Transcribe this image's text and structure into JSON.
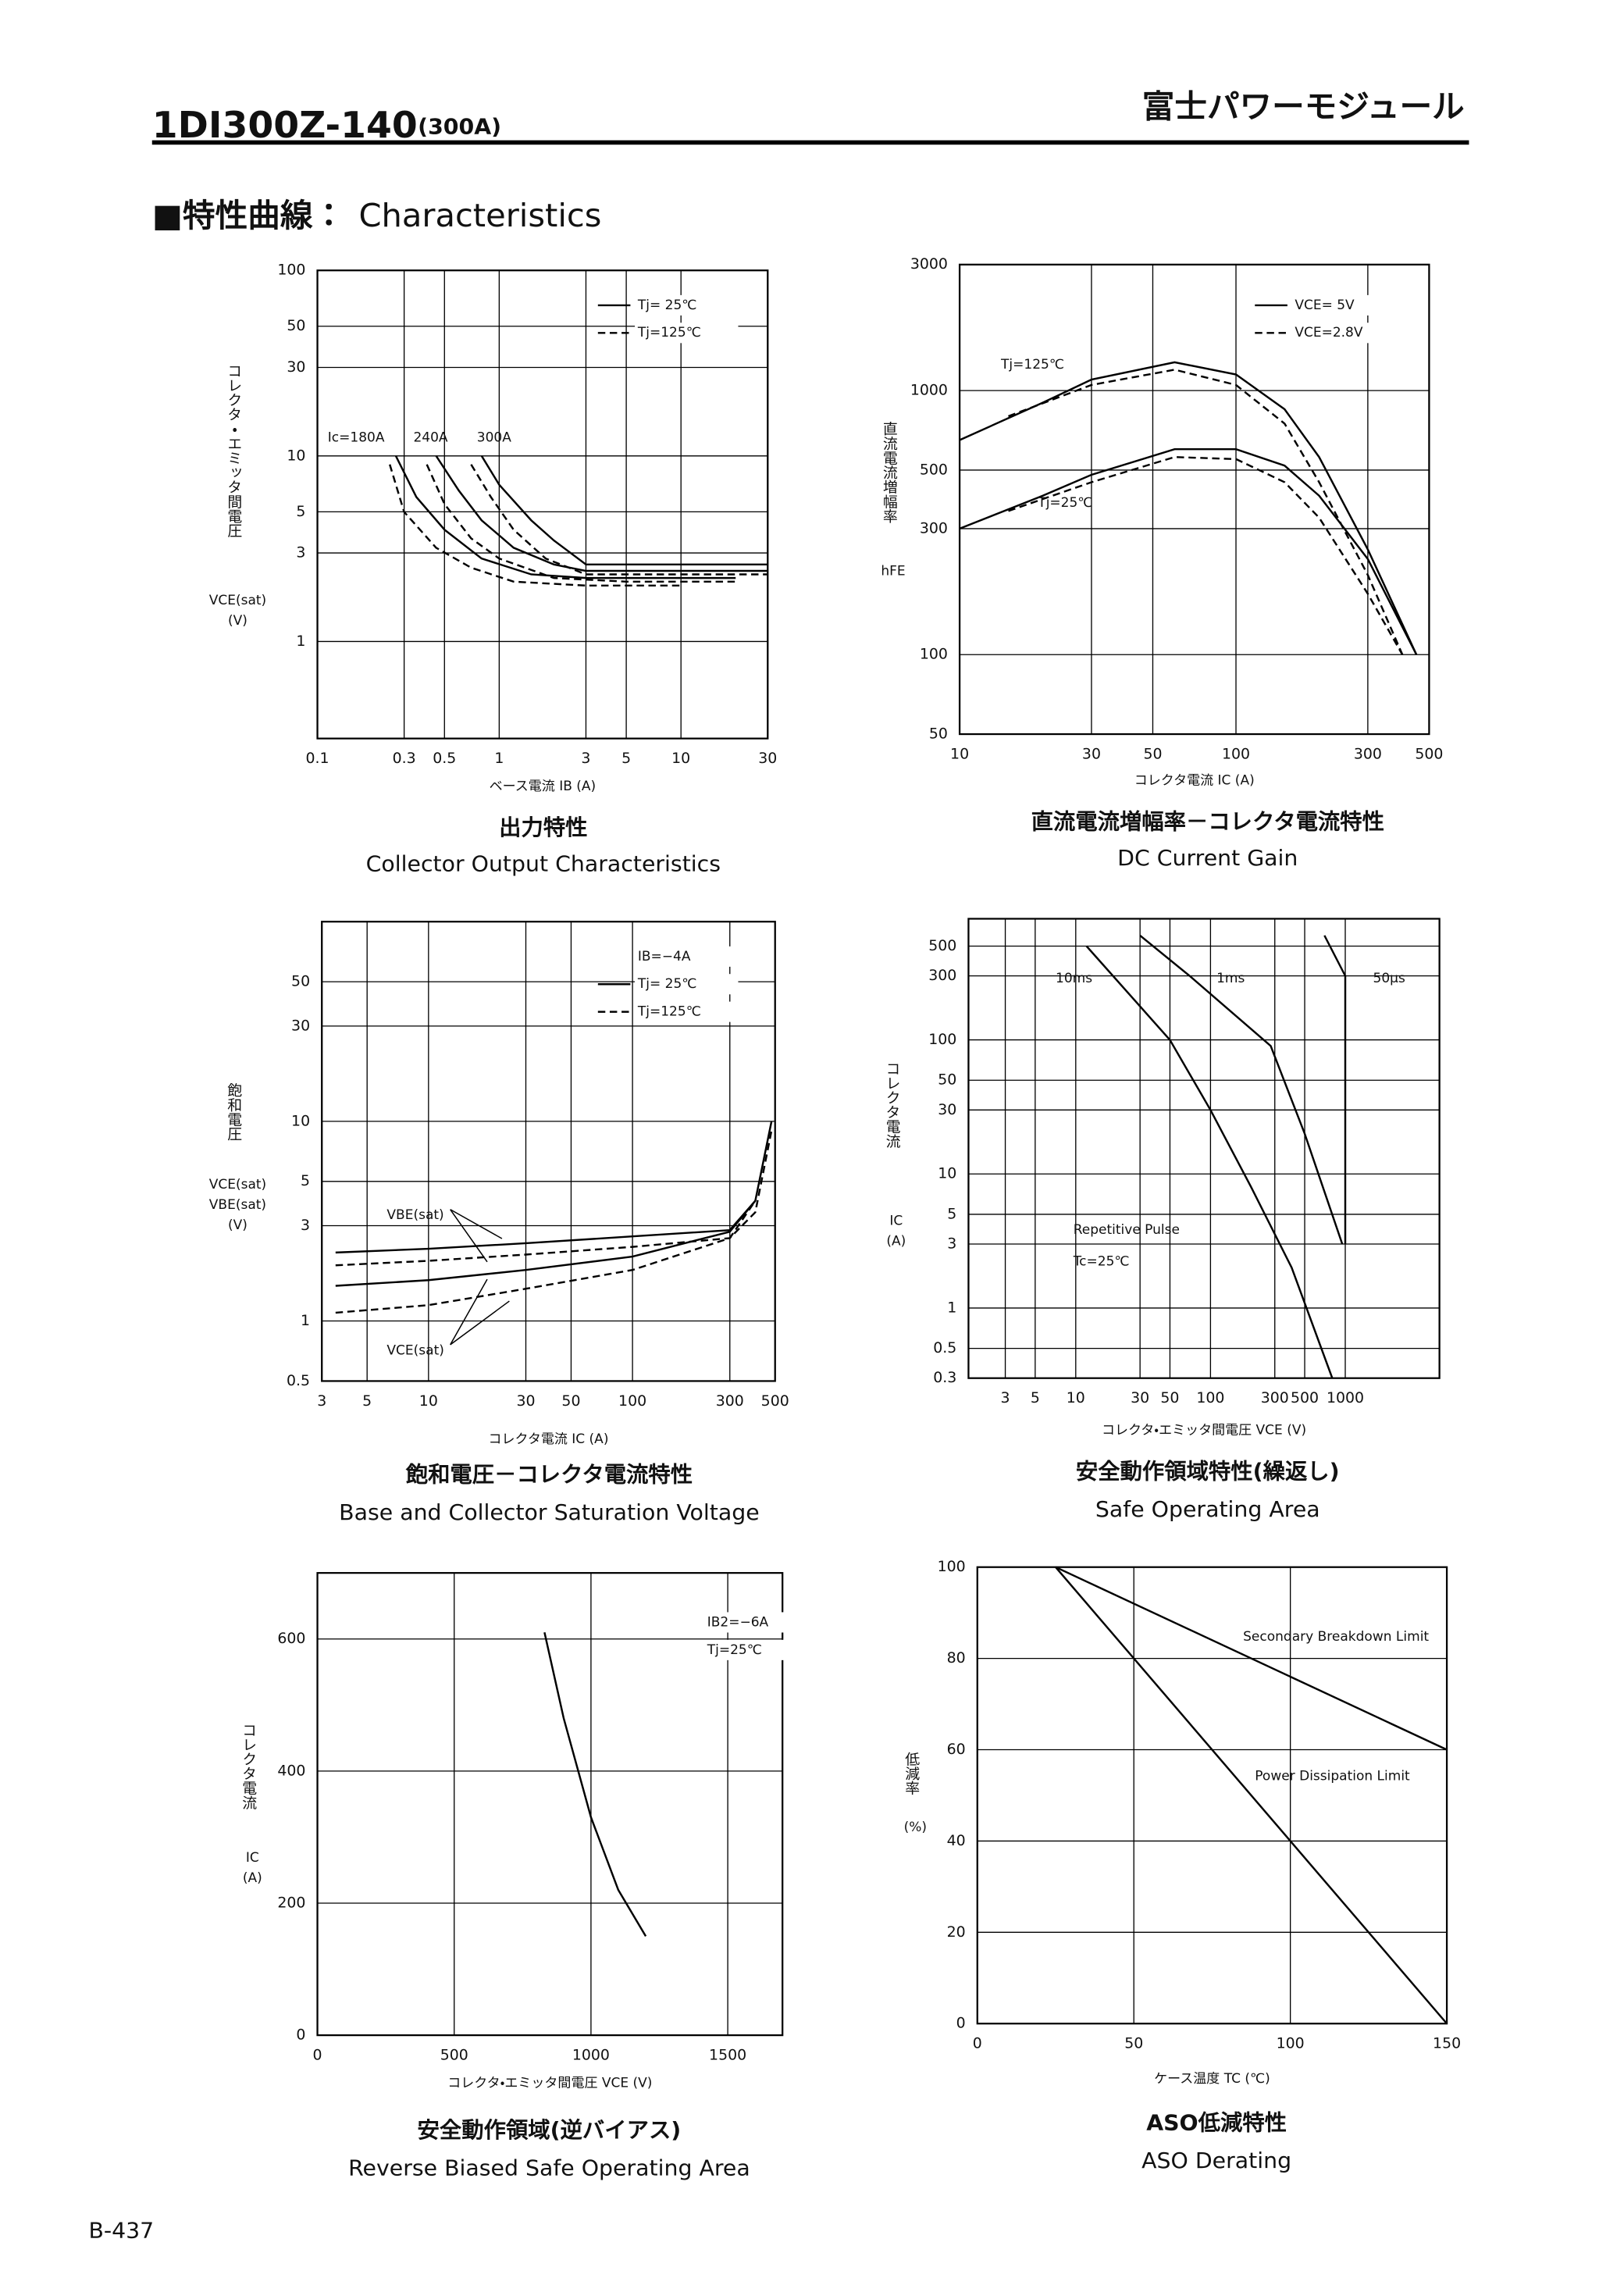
{
  "header": {
    "model": "1DI300Z-140",
    "rating": "(300A)",
    "brand": "富士パワーモジュール"
  },
  "section": {
    "mark": "■特性曲線：",
    "title": "Characteristics"
  },
  "footer": {
    "page": "B-437"
  },
  "chart_data": [
    {
      "type": "line",
      "title_ja": "出力特性",
      "title_en": "Collector Output Characteristics",
      "xlabel": "ベース電流 IB (A)",
      "ylabel": [
        "コレクタ・エミッタ間電圧",
        "VCE(sat)",
        "(V)"
      ],
      "xscale": "log",
      "yscale": "log",
      "xlim": [
        0.1,
        30
      ],
      "ylim": [
        0.3,
        100
      ],
      "xticks": [
        0.1,
        0.3,
        0.5,
        1,
        3,
        5,
        10,
        30
      ],
      "yticks": [
        1,
        3,
        5,
        10,
        30,
        50,
        100
      ],
      "grid": true,
      "color": "#000000",
      "legend": [
        {
          "label": "Tj= 25℃",
          "dash": "solid"
        },
        {
          "label": "Tj=125℃",
          "dash": "dashed"
        }
      ],
      "annotations": [
        "Ic=180A",
        "240A",
        "300A"
      ],
      "series": [
        {
          "dash": "solid",
          "x": [
            0.27,
            0.35,
            0.5,
            0.8,
            1.5,
            3,
            10,
            20
          ],
          "values": [
            10,
            6,
            4,
            2.8,
            2.3,
            2.2,
            2.2,
            2.2
          ]
        },
        {
          "dash": "solid",
          "x": [
            0.45,
            0.6,
            0.8,
            1.2,
            2,
            3,
            10,
            30
          ],
          "values": [
            10,
            6.5,
            4.5,
            3.2,
            2.6,
            2.4,
            2.4,
            2.4
          ]
        },
        {
          "dash": "solid",
          "x": [
            0.8,
            1,
            1.5,
            2,
            3,
            5,
            10,
            30
          ],
          "values": [
            10,
            7,
            4.5,
            3.5,
            2.6,
            2.6,
            2.6,
            2.6
          ]
        },
        {
          "dash": "dashed",
          "x": [
            0.25,
            0.3,
            0.45,
            0.7,
            1.2,
            3,
            10
          ],
          "values": [
            9,
            5,
            3.2,
            2.5,
            2.1,
            2,
            2
          ]
        },
        {
          "dash": "dashed",
          "x": [
            0.4,
            0.5,
            0.7,
            1,
            2,
            5,
            20
          ],
          "values": [
            9,
            5.5,
            3.6,
            2.8,
            2.2,
            2.1,
            2.1
          ]
        },
        {
          "dash": "dashed",
          "x": [
            0.7,
            0.9,
            1.2,
            1.8,
            3,
            10,
            30
          ],
          "values": [
            9,
            6,
            4,
            2.8,
            2.3,
            2.3,
            2.3
          ]
        }
      ]
    },
    {
      "type": "line",
      "title_ja": "直流電流増幅率－コレクタ電流特性",
      "title_en": "DC Current Gain",
      "xlabel": "コレクタ電流 IC (A)",
      "ylabel": [
        "直流電流増幅率",
        "hFE"
      ],
      "xscale": "log",
      "yscale": "log",
      "xlim": [
        10,
        500
      ],
      "ylim": [
        50,
        3000
      ],
      "xticks": [
        10,
        30,
        50,
        100,
        300,
        500
      ],
      "yticks": [
        50,
        100,
        300,
        500,
        1000,
        3000
      ],
      "grid": true,
      "color": "#000000",
      "legend": [
        {
          "label": "VCE= 5V",
          "dash": "solid"
        },
        {
          "label": "VCE=2.8V",
          "dash": "dashed"
        }
      ],
      "annotations": [
        "Tj=125℃",
        "Tj=25℃"
      ],
      "series": [
        {
          "dash": "solid",
          "x": [
            10,
            20,
            30,
            60,
            100,
            150,
            200,
            300,
            450
          ],
          "values": [
            650,
            900,
            1100,
            1280,
            1150,
            850,
            560,
            250,
            100
          ]
        },
        {
          "dash": "dashed",
          "x": [
            15,
            30,
            60,
            100,
            150,
            200,
            300,
            400
          ],
          "values": [
            800,
            1050,
            1200,
            1050,
            750,
            450,
            200,
            100
          ]
        },
        {
          "dash": "solid",
          "x": [
            10,
            20,
            30,
            60,
            100,
            150,
            200,
            300,
            450
          ],
          "values": [
            300,
            400,
            480,
            600,
            600,
            520,
            400,
            230,
            100
          ]
        },
        {
          "dash": "dashed",
          "x": [
            15,
            30,
            60,
            100,
            150,
            200,
            300,
            400
          ],
          "values": [
            350,
            450,
            560,
            550,
            450,
            330,
            170,
            100
          ]
        }
      ]
    },
    {
      "type": "line",
      "title_ja": "飽和電圧－コレクタ電流特性",
      "title_en": "Base and Collector Saturation Voltage",
      "xlabel": "コレクタ電流 IC (A)",
      "ylabel": [
        "飽和電圧",
        "VCE(sat)",
        "VBE(sat)",
        "(V)"
      ],
      "xscale": "log",
      "yscale": "log",
      "xlim": [
        3,
        500
      ],
      "ylim": [
        0.5,
        100
      ],
      "xticks": [
        3,
        5,
        10,
        30,
        50,
        100,
        300,
        500
      ],
      "yticks": [
        0.5,
        1,
        3,
        5,
        10,
        30,
        50
      ],
      "grid": true,
      "color": "#000000",
      "legend": [
        {
          "label": "IB=−4A"
        },
        {
          "label": "Tj= 25℃",
          "dash": "solid"
        },
        {
          "label": "Tj=125℃",
          "dash": "dashed"
        }
      ],
      "annotations": [
        "VBE(sat)",
        "VCE(sat)"
      ],
      "series": [
        {
          "dash": "solid",
          "x": [
            3.5,
            10,
            30,
            100,
            300,
            400,
            480
          ],
          "values": [
            2.2,
            2.3,
            2.45,
            2.65,
            2.85,
            4,
            10
          ]
        },
        {
          "dash": "dashed",
          "x": [
            3.5,
            10,
            30,
            100,
            300,
            400,
            480
          ],
          "values": [
            1.9,
            2,
            2.15,
            2.35,
            2.6,
            3.5,
            9
          ]
        },
        {
          "dash": "solid",
          "x": [
            3.5,
            10,
            30,
            100,
            300,
            400
          ],
          "values": [
            1.5,
            1.6,
            1.8,
            2.1,
            2.8,
            4
          ]
        },
        {
          "dash": "dashed",
          "x": [
            3.5,
            10,
            30,
            100,
            300,
            400
          ],
          "values": [
            1.1,
            1.2,
            1.45,
            1.8,
            2.6,
            4
          ]
        }
      ]
    },
    {
      "type": "line",
      "title_ja": "安全動作領域特性(繰返し)",
      "title_en": "Safe Operating Area",
      "xlabel": "コレクタ・エミッタ間電圧 VCE (V)",
      "ylabel": [
        "コレクタ電流",
        "IC",
        "(A)"
      ],
      "xscale": "log",
      "yscale": "log",
      "xlim": [
        1.6,
        5000
      ],
      "ylim": [
        0.3,
        800
      ],
      "xticks": [
        3,
        5,
        10,
        30,
        50,
        100,
        300,
        500,
        1000
      ],
      "yticks": [
        0.3,
        0.5,
        1,
        3,
        5,
        10,
        30,
        50,
        100,
        300,
        500
      ],
      "grid": true,
      "color": "#000000",
      "annotations": [
        "10ms",
        "1ms",
        "50µs",
        "Repetitive Pulse",
        "Tc=25℃"
      ],
      "series": [
        {
          "dash": "solid",
          "x": [
            12,
            50,
            100,
            200,
            400,
            800
          ],
          "values": [
            500,
            100,
            30,
            8,
            2,
            0.3
          ]
        },
        {
          "dash": "solid",
          "x": [
            30,
            70,
            280,
            500,
            950
          ],
          "values": [
            600,
            300,
            90,
            20,
            3
          ]
        },
        {
          "dash": "solid",
          "x": [
            700,
            1000,
            1000
          ],
          "values": [
            600,
            300,
            3
          ]
        }
      ]
    },
    {
      "type": "line",
      "title_ja": "安全動作領域(逆バイアス)",
      "title_en": "Reverse Biased Safe Operating Area",
      "xlabel": "コレクタ・エミッタ間電圧 VCE (V)",
      "ylabel": [
        "コレクタ電流",
        "IC",
        "(A)"
      ],
      "xscale": "linear",
      "yscale": "linear",
      "xlim": [
        0,
        1700
      ],
      "ylim": [
        0,
        700
      ],
      "xticks": [
        0,
        500,
        1000,
        1500
      ],
      "yticks": [
        0,
        200,
        400,
        600
      ],
      "grid": true,
      "color": "#000000",
      "legend": [
        {
          "label": "IB2=−6A"
        },
        {
          "label": "Tj=25℃"
        }
      ],
      "series": [
        {
          "dash": "solid",
          "x": [
            830,
            900,
            1000,
            1100,
            1200
          ],
          "values": [
            610,
            480,
            330,
            220,
            150
          ]
        }
      ]
    },
    {
      "type": "line",
      "title_ja": "ASO低減特性",
      "title_en": "ASO Derating",
      "xlabel": "ケース温度 TC (℃)",
      "ylabel": [
        "低減率",
        "(%)"
      ],
      "xscale": "linear",
      "yscale": "linear",
      "xlim": [
        0,
        150
      ],
      "ylim": [
        0,
        100
      ],
      "xticks": [
        0,
        50,
        100,
        150
      ],
      "yticks": [
        0,
        20,
        40,
        60,
        80,
        100
      ],
      "grid": true,
      "color": "#000000",
      "annotations": [
        "Secondary Breakdown Limit",
        "Power Dissipation Limit"
      ],
      "series": [
        {
          "dash": "solid",
          "x": [
            25,
            150
          ],
          "values": [
            100,
            60
          ]
        },
        {
          "dash": "solid",
          "x": [
            25,
            150
          ],
          "values": [
            100,
            0
          ]
        }
      ]
    }
  ]
}
